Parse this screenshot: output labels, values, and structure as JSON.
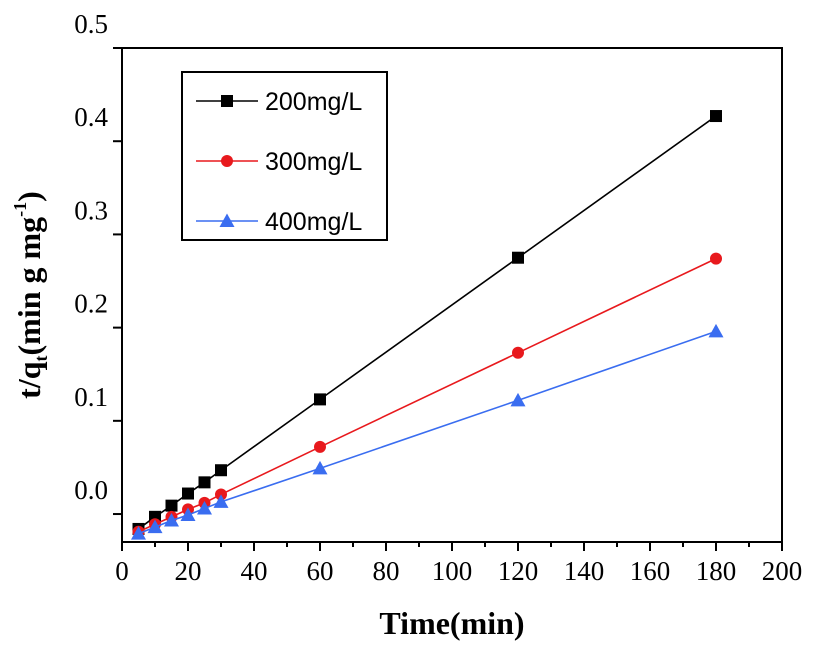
{
  "chart_data": {
    "type": "line",
    "title": "",
    "xlabel": "Time(min)",
    "ylabel_main": "t/q",
    "ylabel_sub": "t",
    "ylabel_unit": "(min g mg",
    "ylabel_sup": "-1",
    "ylabel_close": ")",
    "xlim": [
      0,
      200
    ],
    "ylim": [
      -0.03,
      0.5
    ],
    "x_ticks": [
      "0",
      "20",
      "40",
      "60",
      "80",
      "100",
      "120",
      "140",
      "160",
      "180",
      "200"
    ],
    "y_ticks": [
      "0.0",
      "0.1",
      "0.2",
      "0.3",
      "0.4",
      "0.5"
    ],
    "y_tick_values": [
      0.0,
      0.1,
      0.2,
      0.3,
      0.4,
      0.5
    ],
    "legend_position": "top-left",
    "x": [
      5,
      10,
      15,
      20,
      25,
      30,
      60,
      120,
      180
    ],
    "series": [
      {
        "name": "200mg/L",
        "marker": "square",
        "color": "#000000",
        "values": [
          -0.016,
          -0.003,
          0.009,
          0.022,
          0.034,
          0.047,
          0.123,
          0.275,
          0.427
        ]
      },
      {
        "name": "300mg/L",
        "marker": "circle",
        "color": "#e8191d",
        "values": [
          -0.019,
          -0.011,
          -0.003,
          0.005,
          0.012,
          0.021,
          0.072,
          0.173,
          0.274
        ]
      },
      {
        "name": "400mg/L",
        "marker": "triangle",
        "color": "#3a6df0",
        "values": [
          -0.021,
          -0.014,
          -0.007,
          -0.001,
          0.006,
          0.013,
          0.049,
          0.122,
          0.196
        ]
      }
    ]
  }
}
